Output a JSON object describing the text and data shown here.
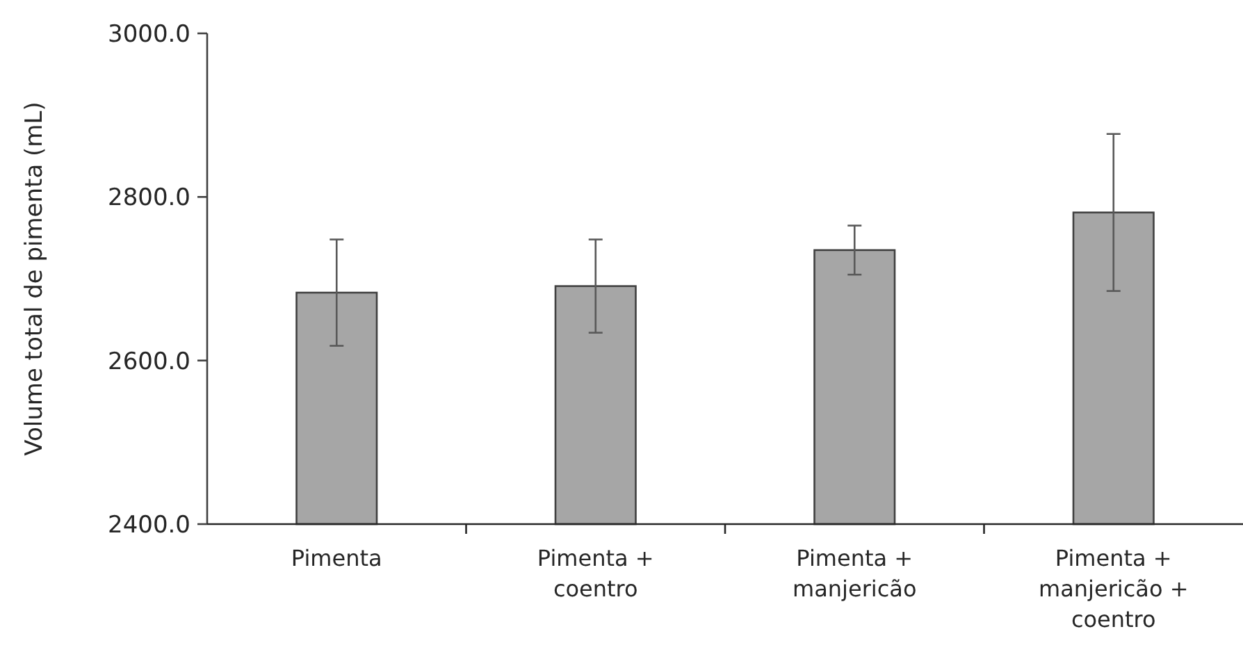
{
  "chart_data": {
    "type": "bar",
    "ylabel": "Volume total de pimenta (mL)",
    "categories": [
      "Pimenta",
      "Pimenta + coentro",
      "Pimenta + manjericão",
      "Pimenta + manjericão + coentro"
    ],
    "values": [
      2683,
      2691,
      2735,
      2781
    ],
    "errors": [
      65,
      57,
      30,
      96
    ],
    "color": "#a6a6a6",
    "ylim": [
      2400,
      3000
    ],
    "yticks": [
      {
        "value": 2400,
        "label": "2400.0"
      },
      {
        "value": 2600,
        "label": "2600.0"
      },
      {
        "value": 2800,
        "label": "2800.0"
      },
      {
        "value": 3000,
        "label": "3000.0"
      }
    ],
    "grid": false
  }
}
